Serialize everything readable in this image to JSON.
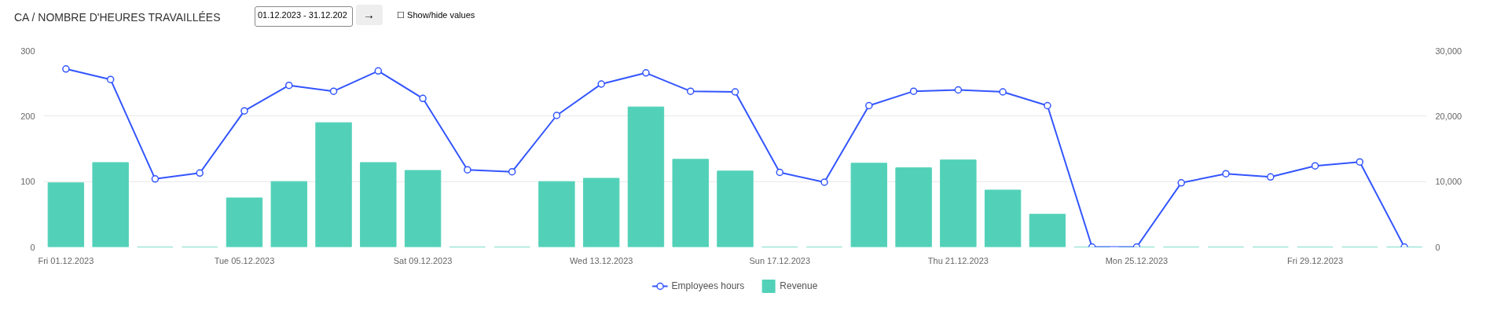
{
  "chart_data": {
    "type": "bar",
    "title": "CA / NOMBRE D'HEURES TRAVAILLÉES",
    "annotations": [
      "01.12.2023 - 31.12.202",
      "→",
      "☐ Show/hide values"
    ],
    "categories": [
      "Fri 01.12.2023",
      null,
      null,
      null,
      "Tue 05.12.2023",
      null,
      null,
      null,
      "Sat 09.12.2023",
      null,
      null,
      null,
      "Wed 13.12.2023",
      null,
      null,
      null,
      "Sun 17.12.2023",
      null,
      null,
      null,
      "Thu 21.12.2023",
      null,
      null,
      null,
      "Mon 25.12.2023",
      null,
      null,
      null,
      "Fri 29.12.2023",
      null,
      null
    ],
    "series": [
      {
        "name": "Employees hours",
        "type": "line",
        "color": "#3355ff",
        "marker": "circle",
        "values": [
          272,
          256,
          104,
          113,
          208,
          247,
          238,
          269,
          227,
          118,
          115,
          201,
          249,
          266,
          238,
          237,
          114,
          99,
          216,
          238,
          240,
          237,
          216,
          0,
          0,
          98,
          112,
          107,
          124,
          130,
          0
        ]
      },
      {
        "name": "Revenue",
        "axis": "y2",
        "color": "#52d1b8",
        "values": [
          9800,
          12900,
          0,
          0,
          7500,
          10000,
          19000,
          12900,
          11700,
          0,
          0,
          10000,
          10500,
          21400,
          13400,
          11600,
          0,
          0,
          12800,
          12100,
          13300,
          8700,
          5000,
          0,
          0,
          0,
          0,
          0,
          0,
          0,
          0
        ]
      }
    ],
    "ylim": [
      0,
      300
    ],
    "yticks": [
      0,
      100,
      200,
      300
    ],
    "y2lim": [
      0,
      30000
    ],
    "y2ticks": [
      0,
      {
        "value": 10000,
        "label": "10,000"
      },
      {
        "value": 20000,
        "label": "20,000"
      },
      {
        "value": 30000,
        "label": "30,000"
      }
    ],
    "grid": "y",
    "legend": "bottom"
  }
}
